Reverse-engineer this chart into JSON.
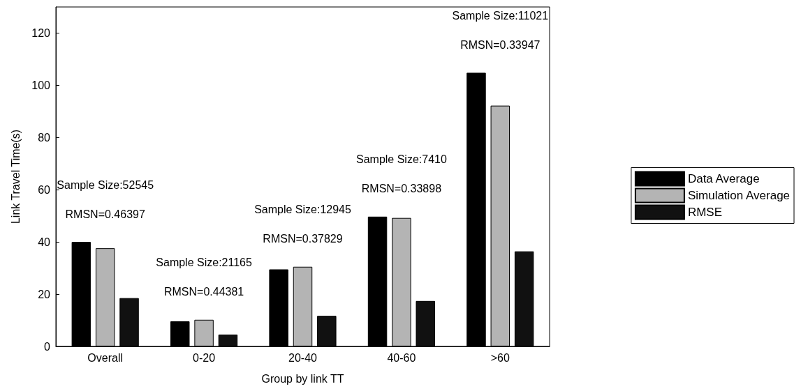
{
  "chart_data": {
    "type": "bar",
    "xlabel": "Group by link TT",
    "ylabel": "Link Travel Time(s)",
    "categories": [
      "Overall",
      "0-20",
      "20-40",
      "40-60",
      ">60"
    ],
    "series": [
      {
        "name": "Data Average",
        "color": "#000000",
        "values": [
          40,
          9.6,
          29.5,
          49.7,
          104.8
        ]
      },
      {
        "name": "Simulation Average",
        "color": "#b4b4b4",
        "values": [
          37.6,
          10.2,
          30.5,
          49.2,
          92.2
        ]
      },
      {
        "name": "RMSE",
        "color": "#111111",
        "values": [
          18.5,
          4.5,
          11.7,
          17.4,
          36.4
        ]
      }
    ],
    "ylim": [
      0,
      130
    ],
    "yticks": [
      0,
      20,
      40,
      60,
      80,
      100,
      120
    ],
    "grid": false,
    "legend": "right",
    "annotations": [
      "Sample Size:52545",
      "RMSN=0.46397",
      "Sample Size:21165",
      "RMSN=0.44381",
      "Sample Size:12945",
      "RMSN=0.37829",
      "Sample Size:7410",
      "RMSN=0.33898",
      "Sample Size:11021",
      "RMSN=0.33947"
    ]
  }
}
